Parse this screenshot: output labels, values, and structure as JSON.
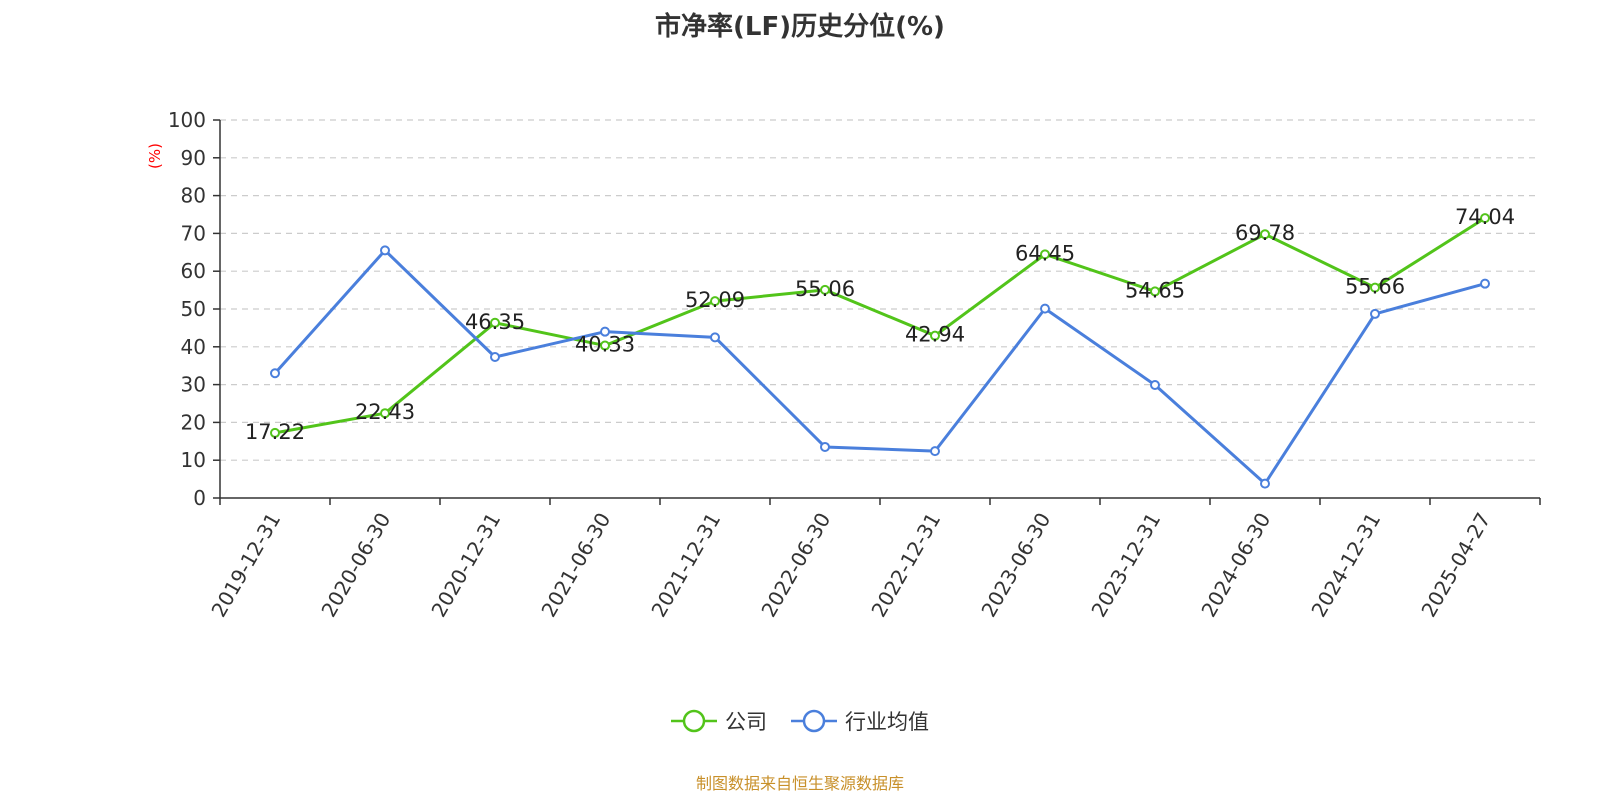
{
  "chart_data": {
    "type": "line",
    "title": "市净率(LF)历史分位(%)",
    "ylabel": "(%)",
    "ylim": [
      0,
      100
    ],
    "yticks": [
      0,
      10,
      20,
      30,
      40,
      50,
      60,
      70,
      80,
      90,
      100
    ],
    "categories": [
      "2019-12-31",
      "2020-06-30",
      "2020-12-31",
      "2021-06-30",
      "2021-12-31",
      "2022-06-30",
      "2022-12-31",
      "2023-06-30",
      "2023-12-31",
      "2024-06-30",
      "2024-12-31",
      "2025-04-27"
    ],
    "grid": true,
    "legend_position": "bottom",
    "series": [
      {
        "name": "公司",
        "color": "#52c41a",
        "show_labels": true,
        "values": [
          17.22,
          22.43,
          46.35,
          40.33,
          52.09,
          55.06,
          42.94,
          64.45,
          54.65,
          69.78,
          55.66,
          74.04
        ]
      },
      {
        "name": "行业均值",
        "color": "#4a7fdc",
        "show_labels": false,
        "values": [
          33.0,
          65.5,
          37.3,
          44.0,
          42.5,
          13.5,
          12.4,
          50.1,
          29.9,
          3.8,
          48.7,
          56.7
        ]
      }
    ]
  },
  "source_text": "制图数据来自恒生聚源数据库",
  "colors": {
    "ylabel": "#ff0000",
    "source": "#c8902a",
    "axis": "#333333",
    "grid": "#cccccc"
  }
}
